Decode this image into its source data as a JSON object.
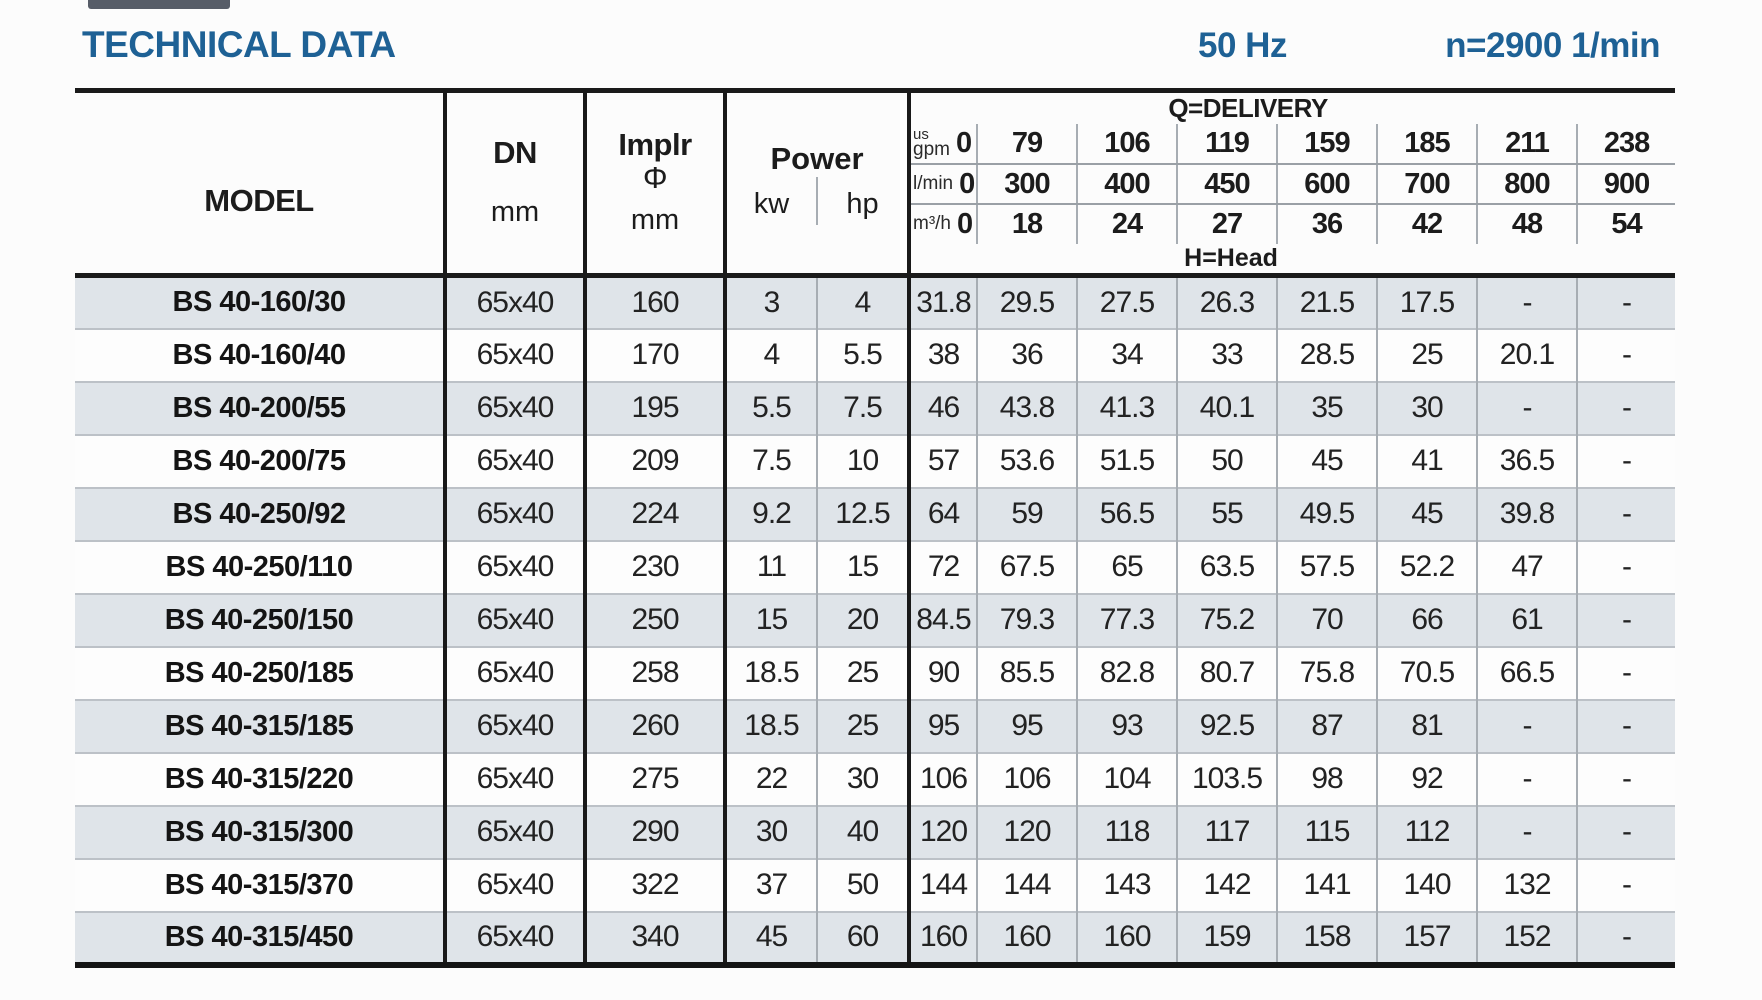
{
  "title": "TECHNICAL DATA",
  "frequency": "50 Hz",
  "speed": "n=2900 1/min",
  "colors": {
    "accent_blue": "#1e6195",
    "stripe_gray": "#dfe4e9",
    "line_black": "#1a1a1a",
    "line_thin_gray": "#a7adb3"
  },
  "table": {
    "model_header": "MODEL",
    "dn_header": "DN",
    "dn_unit": "mm",
    "implr_header": "Implr",
    "implr_symbol": "Φ",
    "implr_unit": "mm",
    "power_header": "Power",
    "power_kw_label": "kw",
    "power_hp_label": "hp",
    "delivery_header": "Q=DELIVERY",
    "head_label": "H=Head",
    "unit_rows": [
      {
        "unit_lines": [
          "us",
          "gpm"
        ],
        "zero": "0",
        "values": [
          "79",
          "106",
          "119",
          "159",
          "185",
          "211",
          "238"
        ]
      },
      {
        "unit_lines": [
          "l/min"
        ],
        "zero": "0",
        "values": [
          "300",
          "400",
          "450",
          "600",
          "700",
          "800",
          "900"
        ]
      },
      {
        "unit_lines": [
          "m³/h"
        ],
        "zero": "0",
        "values": [
          "18",
          "24",
          "27",
          "36",
          "42",
          "48",
          "54"
        ]
      }
    ],
    "rows": [
      {
        "model": "BS 40-160/30",
        "dn": "65x40",
        "implr": "160",
        "kw": "3",
        "hp": "4",
        "heads": [
          "31.8",
          "29.5",
          "27.5",
          "26.3",
          "21.5",
          "17.5",
          "-",
          "-"
        ]
      },
      {
        "model": "BS 40-160/40",
        "dn": "65x40",
        "implr": "170",
        "kw": "4",
        "hp": "5.5",
        "heads": [
          "38",
          "36",
          "34",
          "33",
          "28.5",
          "25",
          "20.1",
          "-"
        ]
      },
      {
        "model": "BS 40-200/55",
        "dn": "65x40",
        "implr": "195",
        "kw": "5.5",
        "hp": "7.5",
        "heads": [
          "46",
          "43.8",
          "41.3",
          "40.1",
          "35",
          "30",
          "-",
          "-"
        ]
      },
      {
        "model": "BS 40-200/75",
        "dn": "65x40",
        "implr": "209",
        "kw": "7.5",
        "hp": "10",
        "heads": [
          "57",
          "53.6",
          "51.5",
          "50",
          "45",
          "41",
          "36.5",
          "-"
        ]
      },
      {
        "model": "BS 40-250/92",
        "dn": "65x40",
        "implr": "224",
        "kw": "9.2",
        "hp": "12.5",
        "heads": [
          "64",
          "59",
          "56.5",
          "55",
          "49.5",
          "45",
          "39.8",
          "-"
        ]
      },
      {
        "model": "BS 40-250/110",
        "dn": "65x40",
        "implr": "230",
        "kw": "11",
        "hp": "15",
        "heads": [
          "72",
          "67.5",
          "65",
          "63.5",
          "57.5",
          "52.2",
          "47",
          "-"
        ]
      },
      {
        "model": "BS 40-250/150",
        "dn": "65x40",
        "implr": "250",
        "kw": "15",
        "hp": "20",
        "heads": [
          "84.5",
          "79.3",
          "77.3",
          "75.2",
          "70",
          "66",
          "61",
          "-"
        ]
      },
      {
        "model": "BS 40-250/185",
        "dn": "65x40",
        "implr": "258",
        "kw": "18.5",
        "hp": "25",
        "heads": [
          "90",
          "85.5",
          "82.8",
          "80.7",
          "75.8",
          "70.5",
          "66.5",
          "-"
        ]
      },
      {
        "model": "BS 40-315/185",
        "dn": "65x40",
        "implr": "260",
        "kw": "18.5",
        "hp": "25",
        "heads": [
          "95",
          "95",
          "93",
          "92.5",
          "87",
          "81",
          "-",
          "-"
        ]
      },
      {
        "model": "BS 40-315/220",
        "dn": "65x40",
        "implr": "275",
        "kw": "22",
        "hp": "30",
        "heads": [
          "106",
          "106",
          "104",
          "103.5",
          "98",
          "92",
          "-",
          "-"
        ]
      },
      {
        "model": "BS 40-315/300",
        "dn": "65x40",
        "implr": "290",
        "kw": "30",
        "hp": "40",
        "heads": [
          "120",
          "120",
          "118",
          "117",
          "115",
          "112",
          "-",
          "-"
        ]
      },
      {
        "model": "BS 40-315/370",
        "dn": "65x40",
        "implr": "322",
        "kw": "37",
        "hp": "50",
        "heads": [
          "144",
          "144",
          "143",
          "142",
          "141",
          "140",
          "132",
          "-"
        ]
      },
      {
        "model": "BS 40-315/450",
        "dn": "65x40",
        "implr": "340",
        "kw": "45",
        "hp": "60",
        "heads": [
          "160",
          "160",
          "160",
          "159",
          "158",
          "157",
          "152",
          "-"
        ]
      }
    ]
  }
}
